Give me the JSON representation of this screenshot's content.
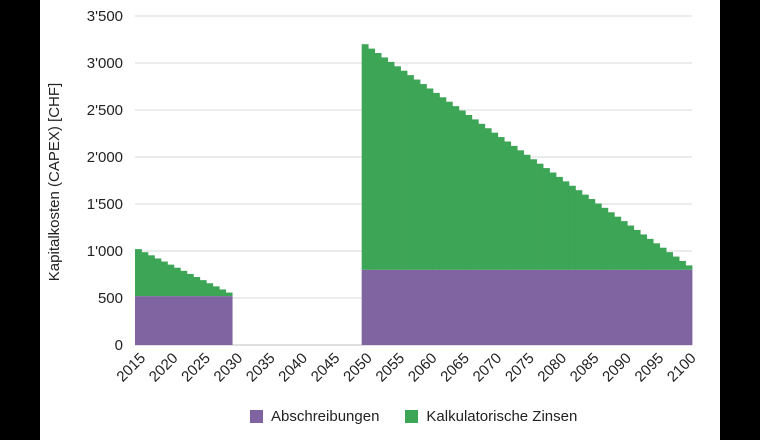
{
  "chart_data": {
    "type": "bar",
    "stacked": true,
    "ylabel": "Kapitalkosten (CAPEX) [CHF]",
    "ylim": [
      0,
      3500
    ],
    "yticks": [
      "0",
      "500",
      "1'000",
      "1'500",
      "2'000",
      "2'500",
      "3'000",
      "3'500"
    ],
    "xticks": [
      "2015",
      "2020",
      "2025",
      "2030",
      "2035",
      "2040",
      "2045",
      "2050",
      "2055",
      "2060",
      "2065",
      "2070",
      "2075",
      "2080",
      "2085",
      "2090",
      "2095",
      "2100"
    ],
    "grid": true,
    "legend_position": "bottom",
    "categories": [
      2015,
      2016,
      2017,
      2018,
      2019,
      2020,
      2021,
      2022,
      2023,
      2024,
      2025,
      2026,
      2027,
      2028,
      2029,
      2030,
      2031,
      2032,
      2033,
      2034,
      2035,
      2036,
      2037,
      2038,
      2039,
      2040,
      2041,
      2042,
      2043,
      2044,
      2045,
      2046,
      2047,
      2048,
      2049,
      2050,
      2051,
      2052,
      2053,
      2054,
      2055,
      2056,
      2057,
      2058,
      2059,
      2060,
      2061,
      2062,
      2063,
      2064,
      2065,
      2066,
      2067,
      2068,
      2069,
      2070,
      2071,
      2072,
      2073,
      2074,
      2075,
      2076,
      2077,
      2078,
      2079,
      2080,
      2081,
      2082,
      2083,
      2084,
      2085,
      2086,
      2087,
      2088,
      2089,
      2090,
      2091,
      2092,
      2093,
      2094,
      2095,
      2096,
      2097,
      2098,
      2099,
      2100
    ],
    "series": [
      {
        "name": "Abschreibungen",
        "color": "#8064a2",
        "values": [
          520,
          520,
          520,
          520,
          520,
          520,
          520,
          520,
          520,
          520,
          520,
          520,
          520,
          520,
          520,
          null,
          null,
          null,
          null,
          null,
          null,
          null,
          null,
          null,
          null,
          null,
          null,
          null,
          null,
          null,
          null,
          null,
          null,
          null,
          null,
          800,
          800,
          800,
          800,
          800,
          800,
          800,
          800,
          800,
          800,
          800,
          800,
          800,
          800,
          800,
          800,
          800,
          800,
          800,
          800,
          800,
          800,
          800,
          800,
          800,
          800,
          800,
          800,
          800,
          800,
          800,
          800,
          800,
          800,
          800,
          800,
          800,
          800,
          800,
          800,
          800,
          800,
          800,
          800,
          800,
          800,
          800,
          800,
          800,
          800,
          800
        ]
      },
      {
        "name": "Kalkulatorische Zinsen",
        "color": "#3da556",
        "values": [
          500,
          467,
          434,
          401,
          368,
          335,
          302,
          269,
          236,
          203,
          170,
          137,
          104,
          71,
          38,
          null,
          null,
          null,
          null,
          null,
          null,
          null,
          null,
          null,
          null,
          null,
          null,
          null,
          null,
          null,
          null,
          null,
          null,
          null,
          null,
          2400,
          2353,
          2306,
          2259,
          2212,
          2165,
          2118,
          2071,
          2024,
          1976,
          1929,
          1882,
          1835,
          1788,
          1741,
          1694,
          1647,
          1600,
          1553,
          1506,
          1459,
          1412,
          1365,
          1318,
          1271,
          1224,
          1176,
          1129,
          1082,
          1035,
          988,
          941,
          894,
          847,
          800,
          753,
          706,
          659,
          612,
          565,
          518,
          471,
          424,
          376,
          329,
          282,
          235,
          188,
          141,
          94,
          47
        ]
      }
    ]
  }
}
